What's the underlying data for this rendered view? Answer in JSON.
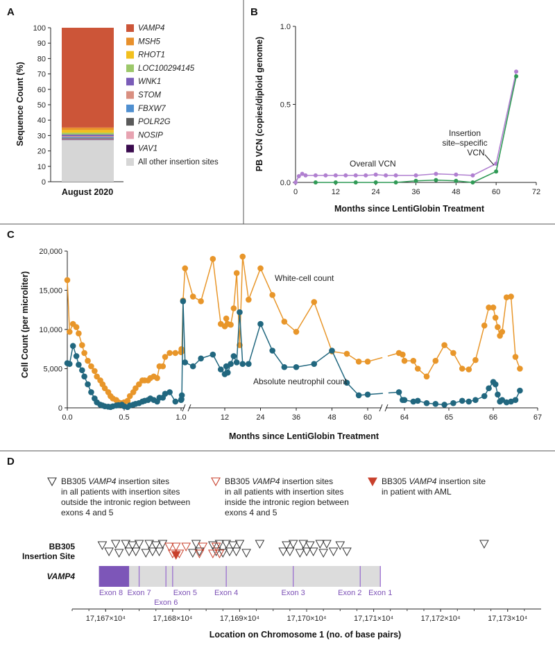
{
  "panels": {
    "a": "A",
    "b": "B",
    "c": "C",
    "d": "D"
  },
  "colors": {
    "orange": "#e8962a",
    "teal": "#21677f",
    "purple": "#b07fd0",
    "green": "#2f9a55",
    "red": "#c8402c",
    "grey": "#dcdcdc",
    "exon_purple": "#7d56b8"
  },
  "chart_data": [
    {
      "id": "A",
      "type": "bar",
      "categories": [
        "August 2020"
      ],
      "ylabel": "Sequence Count (%)",
      "ylim": [
        0,
        100
      ],
      "yticks": [
        0,
        10,
        20,
        30,
        40,
        50,
        60,
        70,
        80,
        90,
        100
      ],
      "series": [
        {
          "name": "All other insertion sites",
          "value": 27.2,
          "color": "#d6d6d6",
          "italic": false
        },
        {
          "name": "VAV1",
          "value": 0.4,
          "color": "#3a0b4e",
          "italic": true
        },
        {
          "name": "NOSIP",
          "value": 0.4,
          "color": "#e7a3b1",
          "italic": true
        },
        {
          "name": "POLR2G",
          "value": 0.4,
          "color": "#5a5a5a",
          "italic": true
        },
        {
          "name": "FBXW7",
          "value": 0.6,
          "color": "#4f8fd0",
          "italic": true
        },
        {
          "name": "STOM",
          "value": 0.6,
          "color": "#d98f80",
          "italic": true
        },
        {
          "name": "WNK1",
          "value": 1.0,
          "color": "#7a5cb8",
          "italic": true
        },
        {
          "name": "LOC100294145",
          "value": 1.2,
          "color": "#9cc86a",
          "italic": true
        },
        {
          "name": "RHOT1",
          "value": 1.8,
          "color": "#f2c01e",
          "italic": true
        },
        {
          "name": "MSH5",
          "value": 1.6,
          "color": "#e8902c",
          "italic": true
        },
        {
          "name": "VAMP4",
          "value": 64.8,
          "color": "#cc5538",
          "italic": true
        }
      ]
    },
    {
      "id": "B",
      "type": "line",
      "xlabel": "Months since LentiGlobin Treatment",
      "ylabel": "PB VCN (copies/diploid genome)",
      "xlim": [
        0,
        72
      ],
      "ylim": [
        0,
        1.0
      ],
      "xticks": [
        0,
        12,
        24,
        36,
        48,
        60,
        72
      ],
      "yticks": [
        0.0,
        0.5,
        1.0
      ],
      "series": [
        {
          "name": "Overall VCN",
          "color": "#b07fd0",
          "x": [
            0,
            1,
            2,
            3,
            6,
            9,
            12,
            15,
            18,
            21,
            24,
            27,
            30,
            36,
            42,
            48,
            53,
            60,
            66
          ],
          "y": [
            0.0,
            0.04,
            0.055,
            0.045,
            0.045,
            0.045,
            0.045,
            0.045,
            0.045,
            0.045,
            0.05,
            0.045,
            0.045,
            0.045,
            0.055,
            0.05,
            0.045,
            0.12,
            0.71
          ]
        },
        {
          "name": "Insertion site–specific VCN",
          "color": "#2f9a55",
          "x": [
            6,
            12,
            18,
            24,
            30,
            36,
            42,
            48,
            53,
            60,
            66
          ],
          "y": [
            0.0,
            0.0,
            0.0,
            0.0,
            0.0,
            0.01,
            0.015,
            0.01,
            0.0,
            0.07,
            0.68
          ]
        }
      ],
      "annotations": {
        "overall": "Overall VCN",
        "insertion_1": "Insertion",
        "insertion_2": "site–specific",
        "insertion_3": "VCN"
      }
    },
    {
      "id": "C",
      "type": "line",
      "xlabel": "Months since LentiGlobin Treatment",
      "ylabel": "Cell Count (per microliter)",
      "ylim": [
        0,
        20000
      ],
      "yticks": [
        "0",
        "5,000",
        "10,000",
        "15,000",
        "20,000"
      ],
      "xticks": [
        "0.0",
        "0.5",
        "1.0",
        "12",
        "24",
        "36",
        "48",
        "60",
        "64",
        "65",
        "66",
        "67"
      ],
      "series": [
        {
          "name": "White-cell count",
          "color": "#e8962a",
          "x": [
            0,
            0.02,
            0.05,
            0.08,
            0.1,
            0.13,
            0.15,
            0.18,
            0.21,
            0.24,
            0.26,
            0.29,
            0.31,
            0.33,
            0.36,
            0.38,
            0.4,
            0.43,
            0.45,
            0.48,
            0.5,
            0.53,
            0.55,
            0.58,
            0.6,
            0.63,
            0.66,
            0.68,
            0.71,
            0.73,
            0.76,
            0.79,
            0.81,
            0.84,
            0.86,
            0.9,
            0.95,
            1.0,
            1.1,
            1.2,
            1.5,
            2,
            4,
            6,
            9,
            11,
            12,
            12.5,
            13,
            14,
            15,
            16,
            17,
            18,
            20,
            24,
            28,
            32,
            36,
            42,
            48,
            53,
            57,
            60,
            63.4,
            63.8,
            64.0,
            64.2,
            64.3,
            64.5,
            64.7,
            64.9,
            65.1,
            65.3,
            65.45,
            65.6,
            65.8,
            65.9,
            66.0,
            66.05,
            66.1,
            66.15,
            66.2,
            66.3,
            66.4,
            66.5,
            66.6
          ],
          "y": [
            16300,
            9700,
            10700,
            10300,
            9500,
            8000,
            7000,
            6000,
            5300,
            4700,
            4000,
            3500,
            3000,
            2500,
            2000,
            1500,
            1200,
            1000,
            700,
            600,
            700,
            900,
            1500,
            2000,
            2500,
            3000,
            3500,
            3500,
            3500,
            3800,
            4000,
            3800,
            5300,
            5300,
            6500,
            7000,
            7000,
            7100,
            7500,
            7200,
            13700,
            17800,
            14200,
            13600,
            19000,
            10700,
            10400,
            11400,
            10700,
            10600,
            12700,
            17200,
            8000,
            19300,
            13800,
            17800,
            14400,
            11000,
            9700,
            13500,
            7200,
            6900,
            5900,
            5900,
            7000,
            6800,
            6000,
            6000,
            5000,
            4000,
            6000,
            8000,
            7000,
            5000,
            4900,
            6100,
            10500,
            12800,
            12800,
            11500,
            10300,
            9200,
            9700,
            14100,
            14200,
            6500,
            5000
          ]
        },
        {
          "name": "Absolute neutrophil count",
          "color": "#21677f",
          "x": [
            0,
            0.02,
            0.05,
            0.08,
            0.1,
            0.13,
            0.15,
            0.18,
            0.21,
            0.24,
            0.26,
            0.29,
            0.31,
            0.33,
            0.36,
            0.38,
            0.4,
            0.43,
            0.45,
            0.48,
            0.5,
            0.53,
            0.55,
            0.58,
            0.6,
            0.63,
            0.66,
            0.68,
            0.71,
            0.73,
            0.76,
            0.79,
            0.81,
            0.84,
            0.86,
            0.9,
            0.95,
            1.0,
            1.1,
            1.2,
            1.5,
            2,
            4,
            6,
            9,
            11,
            12,
            12.5,
            13,
            14,
            15,
            16,
            17,
            18,
            20,
            24,
            28,
            32,
            36,
            42,
            48,
            53,
            57,
            60,
            63.4,
            63.8,
            64.0,
            64.2,
            64.3,
            64.5,
            64.7,
            64.9,
            65.1,
            65.3,
            65.45,
            65.6,
            65.8,
            65.9,
            66.0,
            66.05,
            66.1,
            66.15,
            66.2,
            66.3,
            66.4,
            66.5,
            66.6
          ],
          "y": [
            5700,
            5600,
            7900,
            6600,
            5500,
            4800,
            4000,
            3000,
            2000,
            1200,
            700,
            400,
            300,
            200,
            150,
            100,
            200,
            300,
            350,
            400,
            200,
            100,
            300,
            400,
            500,
            600,
            800,
            900,
            1000,
            1200,
            1000,
            800,
            1300,
            1300,
            1800,
            2000,
            800,
            1000,
            1100,
            1600,
            13600,
            5800,
            5300,
            6300,
            6800,
            4900,
            4300,
            5300,
            4500,
            5600,
            6600,
            5800,
            12200,
            5600,
            5600,
            10700,
            7300,
            5200,
            5200,
            5600,
            7300,
            3200,
            1600,
            1700,
            2000,
            1000,
            1000,
            800,
            900,
            600,
            500,
            400,
            600,
            900,
            800,
            1000,
            1500,
            2500,
            3300,
            3000,
            1700,
            800,
            1000,
            700,
            800,
            1000,
            2200
          ]
        }
      ],
      "annotations": {
        "wbc": "White-cell count",
        "anc": "Absolute neutrophil count"
      }
    },
    {
      "id": "D",
      "type": "scatter",
      "xlabel": "Location on Chromosome 1 (no. of base pairs)",
      "xlim": [
        17.1665,
        17.1735
      ],
      "xticks": [
        "17,167×10⁴",
        "17,168×10⁴",
        "17,169×10⁴",
        "17,170×10⁴",
        "17,171×10⁴",
        "17,172×10⁴",
        "17,173×10⁴"
      ],
      "xtick_values": [
        17.167,
        17.168,
        17.169,
        17.17,
        17.171,
        17.172,
        17.173
      ],
      "gene_span": [
        17.1669,
        17.1711
      ],
      "exons": [
        {
          "label": "Exon 8",
          "pos": 17.1671
        },
        {
          "label": "Exon 7",
          "pos": 17.1675
        },
        {
          "label": "Exon 6",
          "pos": 17.1679
        },
        {
          "label": "Exon 5",
          "pos": 17.168
        },
        {
          "label": "Exon 4",
          "pos": 17.1688
        },
        {
          "label": "Exon 3",
          "pos": 17.1698
        },
        {
          "label": "Exon 2",
          "pos": 17.1708
        },
        {
          "label": "Exon 1",
          "pos": 17.1711
        }
      ],
      "row_labels": {
        "site_1": "BB305",
        "site_2": "Insertion Site",
        "gene": "VAMP4"
      },
      "outside_sites": [
        17.16695,
        17.16705,
        17.16715,
        17.1672,
        17.1673,
        17.16735,
        17.1674,
        17.16745,
        17.1675,
        17.1676,
        17.16765,
        17.1677,
        17.16775,
        17.1678,
        17.16785,
        17.1683,
        17.16835,
        17.1684,
        17.1686,
        17.16865,
        17.1687,
        17.16875,
        17.1688,
        17.16885,
        17.1689,
        17.16895,
        17.169,
        17.1691,
        17.1693,
        17.16965,
        17.1697,
        17.16975,
        17.1698,
        17.1699,
        17.16995,
        17.17,
        17.17005,
        17.1701,
        17.1702,
        17.17025,
        17.1703,
        17.1704,
        17.1705,
        17.1706,
        17.17265
      ],
      "inside_sites": [
        17.16795,
        17.168,
        17.16805,
        17.1681,
        17.1682,
        17.1684,
        17.16845,
        17.1686,
        17.16865,
        17.1687
      ],
      "aml_site": 17.16805,
      "legend": [
        {
          "marker": "black-open",
          "line_1_pre": "BB305 ",
          "line_1_it": "VAMP4",
          "line_1_post": " insertion sites",
          "line_2": "in all patients with insertion sites",
          "line_3": "outside the intronic region between",
          "line_4": "exons 4 and 5"
        },
        {
          "marker": "red-open",
          "line_1_pre": "BB305 ",
          "line_1_it": "VAMP4",
          "line_1_post": " insertion sites",
          "line_2": "in all patients with insertion sites",
          "line_3": "inside the intronic region between",
          "line_4": "exons 4 and 5"
        },
        {
          "marker": "red-filled",
          "line_1_pre": "BB305 ",
          "line_1_it": "VAMP4",
          "line_1_post": " insertion site",
          "line_2": "in patient with AML",
          "line_3": "",
          "line_4": ""
        }
      ]
    }
  ]
}
